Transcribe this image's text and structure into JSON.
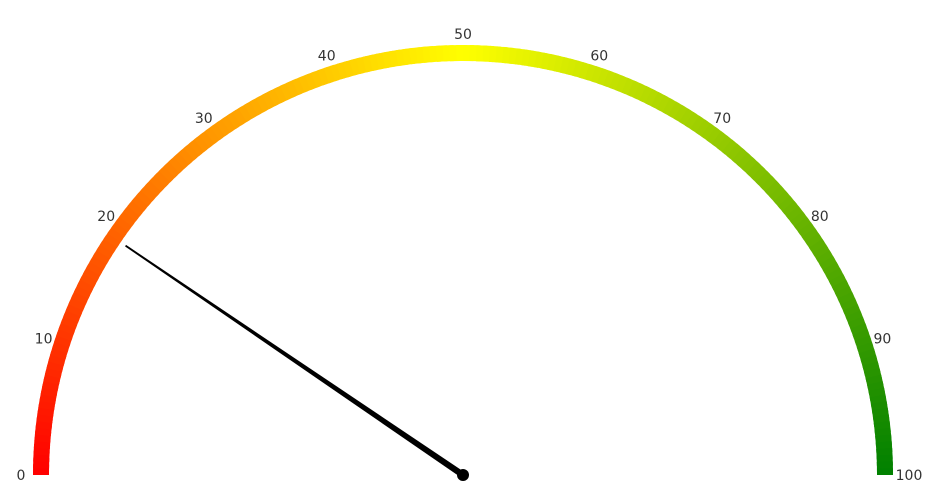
{
  "chart_data": {
    "type": "gauge",
    "min": 0,
    "max": 100,
    "value": 19,
    "tick_labels": [
      "0",
      "10",
      "20",
      "30",
      "40",
      "50",
      "60",
      "70",
      "80",
      "90",
      "100"
    ],
    "tick_values": [
      0,
      10,
      20,
      30,
      40,
      50,
      60,
      70,
      80,
      90,
      100
    ],
    "colors": {
      "low": "#ff0000",
      "mid": "#ffff00",
      "high": "#008000",
      "needle": "#000000"
    }
  }
}
